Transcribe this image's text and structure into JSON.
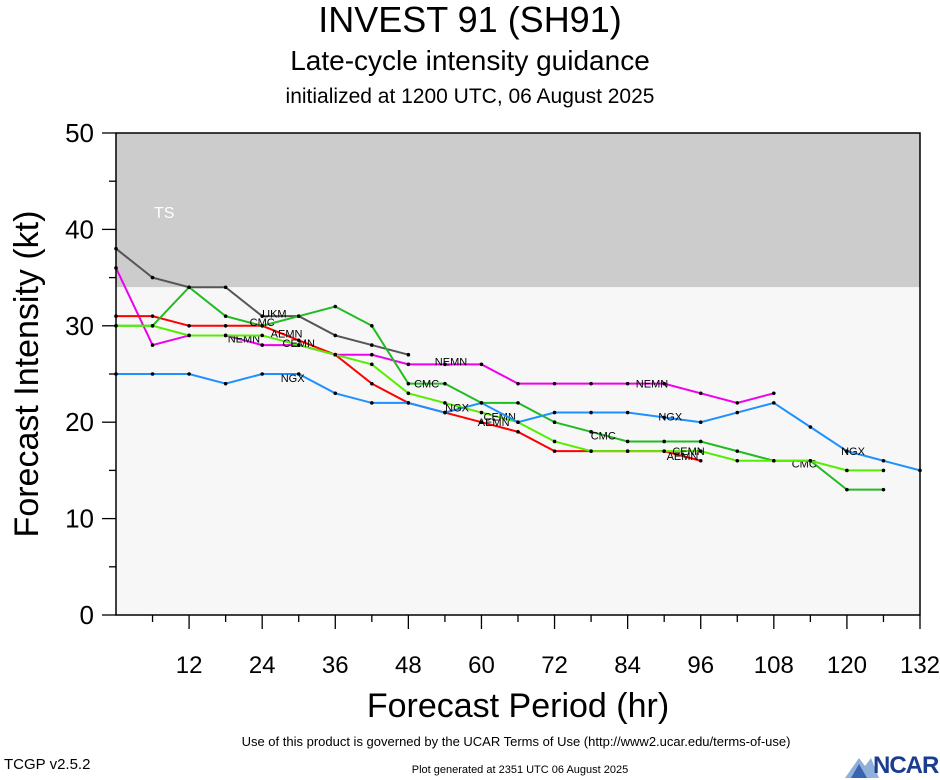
{
  "chart_data": {
    "type": "line",
    "title": "INVEST 91 (SH91)",
    "subtitle": "Late-cycle intensity guidance",
    "initialized": "initialized at 1200 UTC, 06 August 2025",
    "xlabel": "Forecast Period (hr)",
    "ylabel": "Forecast Intensity (kt)",
    "xlim": [
      0,
      132
    ],
    "ylim": [
      0,
      50
    ],
    "xticks": [
      12,
      24,
      36,
      48,
      60,
      72,
      84,
      96,
      108,
      120,
      132
    ],
    "yticks": [
      0,
      10,
      20,
      30,
      40,
      50
    ],
    "grid": false,
    "bands": [
      {
        "label": "TS",
        "from": 34,
        "to": 50,
        "color": "#cccccc"
      },
      {
        "label": "",
        "from": 0,
        "to": 34,
        "color": "#f7f7f7"
      }
    ],
    "series": [
      {
        "name": "",
        "color": "#555555",
        "x": [
          0,
          6,
          12,
          18,
          24,
          30,
          36,
          42,
          48
        ],
        "y": [
          38,
          35,
          34,
          34,
          31,
          31,
          29,
          28,
          27
        ],
        "labels": [
          {
            "text": "UKM",
            "x": 26,
            "y": 31.3
          }
        ]
      },
      {
        "name": "",
        "color": "#ee00ee",
        "x": [
          0,
          6,
          12,
          18,
          24,
          30,
          36,
          42,
          48,
          54,
          60,
          66,
          72,
          78,
          84,
          90,
          96,
          102,
          108
        ],
        "y": [
          36,
          28,
          29,
          29,
          28,
          28,
          27,
          27,
          26,
          26,
          26,
          24,
          24,
          24,
          24,
          24,
          23,
          22,
          23
        ],
        "labels": [
          {
            "text": "NEMN",
            "x": 21,
            "y": 28.7
          },
          {
            "text": "NEMN",
            "x": 55,
            "y": 26.3
          },
          {
            "text": "NEMN",
            "x": 88,
            "y": 24
          }
        ]
      },
      {
        "name": "",
        "color": "#ff0000",
        "x": [
          0,
          6,
          12,
          18,
          24,
          30,
          36,
          42,
          48,
          54,
          60,
          66,
          72,
          78,
          84,
          90,
          96
        ],
        "y": [
          31,
          31,
          30,
          30,
          30,
          28.5,
          27,
          24,
          22,
          21,
          20,
          19,
          17,
          17,
          17,
          17,
          16
        ],
        "labels": [
          {
            "text": "AEMN",
            "x": 28,
            "y": 29.2
          },
          {
            "text": "AEMN",
            "x": 62,
            "y": 20
          },
          {
            "text": "AEMN",
            "x": 93,
            "y": 16.5
          }
        ]
      },
      {
        "name": "",
        "color": "#22bb22",
        "x": [
          0,
          6,
          12,
          18,
          24,
          30,
          36,
          42,
          48,
          54,
          60,
          66,
          72,
          78,
          84,
          90,
          96,
          102,
          108,
          114,
          120,
          126
        ],
        "y": [
          30,
          30,
          34,
          31,
          30,
          31,
          32,
          30,
          24,
          24,
          22,
          22,
          20,
          19,
          18,
          18,
          18,
          17,
          16,
          16,
          13,
          13
        ],
        "labels": [
          {
            "text": "CMC",
            "x": 24,
            "y": 30.4
          },
          {
            "text": "CMC",
            "x": 51,
            "y": 24
          },
          {
            "text": "CMC",
            "x": 80,
            "y": 18.6
          },
          {
            "text": "CMC",
            "x": 113,
            "y": 15.7
          }
        ]
      },
      {
        "name": "",
        "color": "#55ee00",
        "x": [
          0,
          6,
          12,
          18,
          24,
          30,
          36,
          42,
          48,
          54,
          60,
          66,
          72,
          78,
          84,
          90,
          96,
          102,
          108,
          114,
          120,
          126
        ],
        "y": [
          30,
          30,
          29,
          29,
          29,
          28,
          27,
          26,
          23,
          22,
          21,
          20,
          18,
          17,
          17,
          17,
          17,
          16,
          16,
          16,
          15,
          15
        ],
        "labels": [
          {
            "text": "CEMN",
            "x": 30,
            "y": 28.2
          },
          {
            "text": "CEMN",
            "x": 63,
            "y": 20.6
          },
          {
            "text": "CEMN",
            "x": 94,
            "y": 17
          }
        ]
      },
      {
        "name": "",
        "color": "#1e90ff",
        "x": [
          0,
          6,
          12,
          18,
          24,
          30,
          36,
          42,
          48,
          54,
          60,
          66,
          72,
          78,
          84,
          90,
          96,
          102,
          108,
          114,
          120,
          126,
          132
        ],
        "y": [
          25,
          25,
          25,
          24,
          25,
          25,
          23,
          22,
          22,
          21,
          22,
          20,
          21,
          21,
          21,
          20.5,
          20,
          21,
          22,
          19.5,
          17,
          16,
          15
        ],
        "labels": [
          {
            "text": "NGX",
            "x": 29,
            "y": 24.6
          },
          {
            "text": "NGX",
            "x": 56,
            "y": 21.5
          },
          {
            "text": "NGX",
            "x": 91,
            "y": 20.6
          },
          {
            "text": "NGX",
            "x": 121,
            "y": 17
          }
        ]
      }
    ]
  },
  "footer": {
    "terms": "Use of this product is governed by the UCAR Terms of Use (http://www2.ucar.edu/terms-of-use)",
    "version": "TCGP v2.5.2",
    "generated": "Plot generated at 2351 UTC   06 August 2025",
    "logo_text": "NCAR"
  }
}
